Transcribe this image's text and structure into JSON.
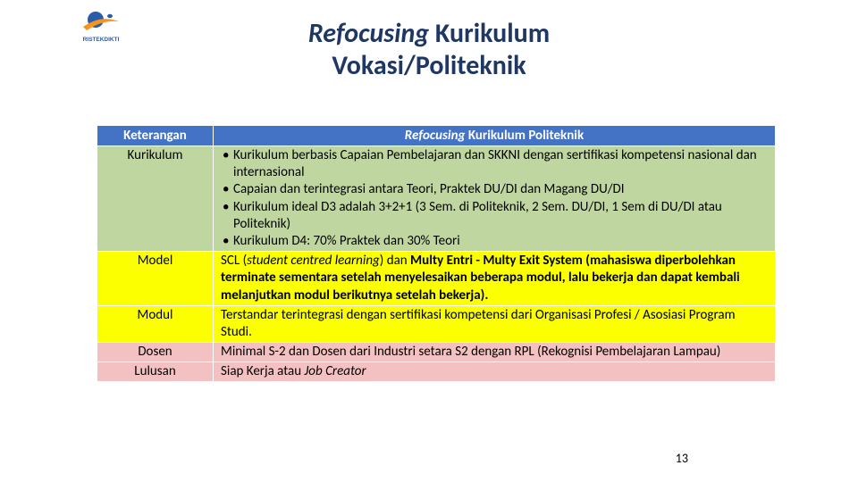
{
  "logo": {
    "text": "RISTEKDIKTI",
    "accent_color": "#2a5caa",
    "swoosh_color": "#f7941d"
  },
  "title": {
    "italic_part": "Refocusing",
    "rest_line1": " Kurikulum",
    "line2": "Vokasi/Politeknik"
  },
  "table": {
    "headers": {
      "col1": "Keterangan",
      "col2_italic": "Refocusing",
      "col2_rest": " Kurikulum Politeknik"
    },
    "rows": [
      {
        "label": "Kurikulum",
        "bg": "bg-green",
        "bullets": [
          "Kurikulum berbasis Capaian Pembelajaran dan  SKKNI dengan sertifikasi kompetensi nasional dan internasional",
          "Capaian dan terintegrasi antara Teori, Praktek DU/DI dan Magang DU/DI",
          "Kurikulum ideal D3 adalah 3+2+1 (3 Sem. di Politeknik, 2 Sem. DU/DI, 1 Sem di DU/DI atau Politeknik)",
          "Kurikulum D4: 70% Praktek dan 30% Teori"
        ]
      },
      {
        "label": "Model",
        "bg": "bg-yellow",
        "html": "SCL (<i>student centred learning</i>) dan <b>Multy Entri - Multy Exit System (mahasiswa diperbolehkan terminate sementara setelah menyelesaikan beberapa modul, lalu bekerja dan dapat kembali melanjutkan modul berikutnya setelah bekerja).</b>"
      },
      {
        "label": "Modul",
        "bg": "bg-yellow",
        "text": "Terstandar terintegrasi dengan sertifikasi kompetensi dari Organisasi Profesi / Asosiasi Program Studi."
      },
      {
        "label": "Dosen",
        "bg": "bg-pink",
        "text": "Minimal S-2 dan Dosen dari Industri setara S2 dengan RPL (Rekognisi Pembelajaran Lampau)"
      },
      {
        "label": "Lulusan",
        "bg": "bg-pink",
        "html": "Siap Kerja atau <i>Job Creator</i>"
      }
    ]
  },
  "page_number": "13"
}
